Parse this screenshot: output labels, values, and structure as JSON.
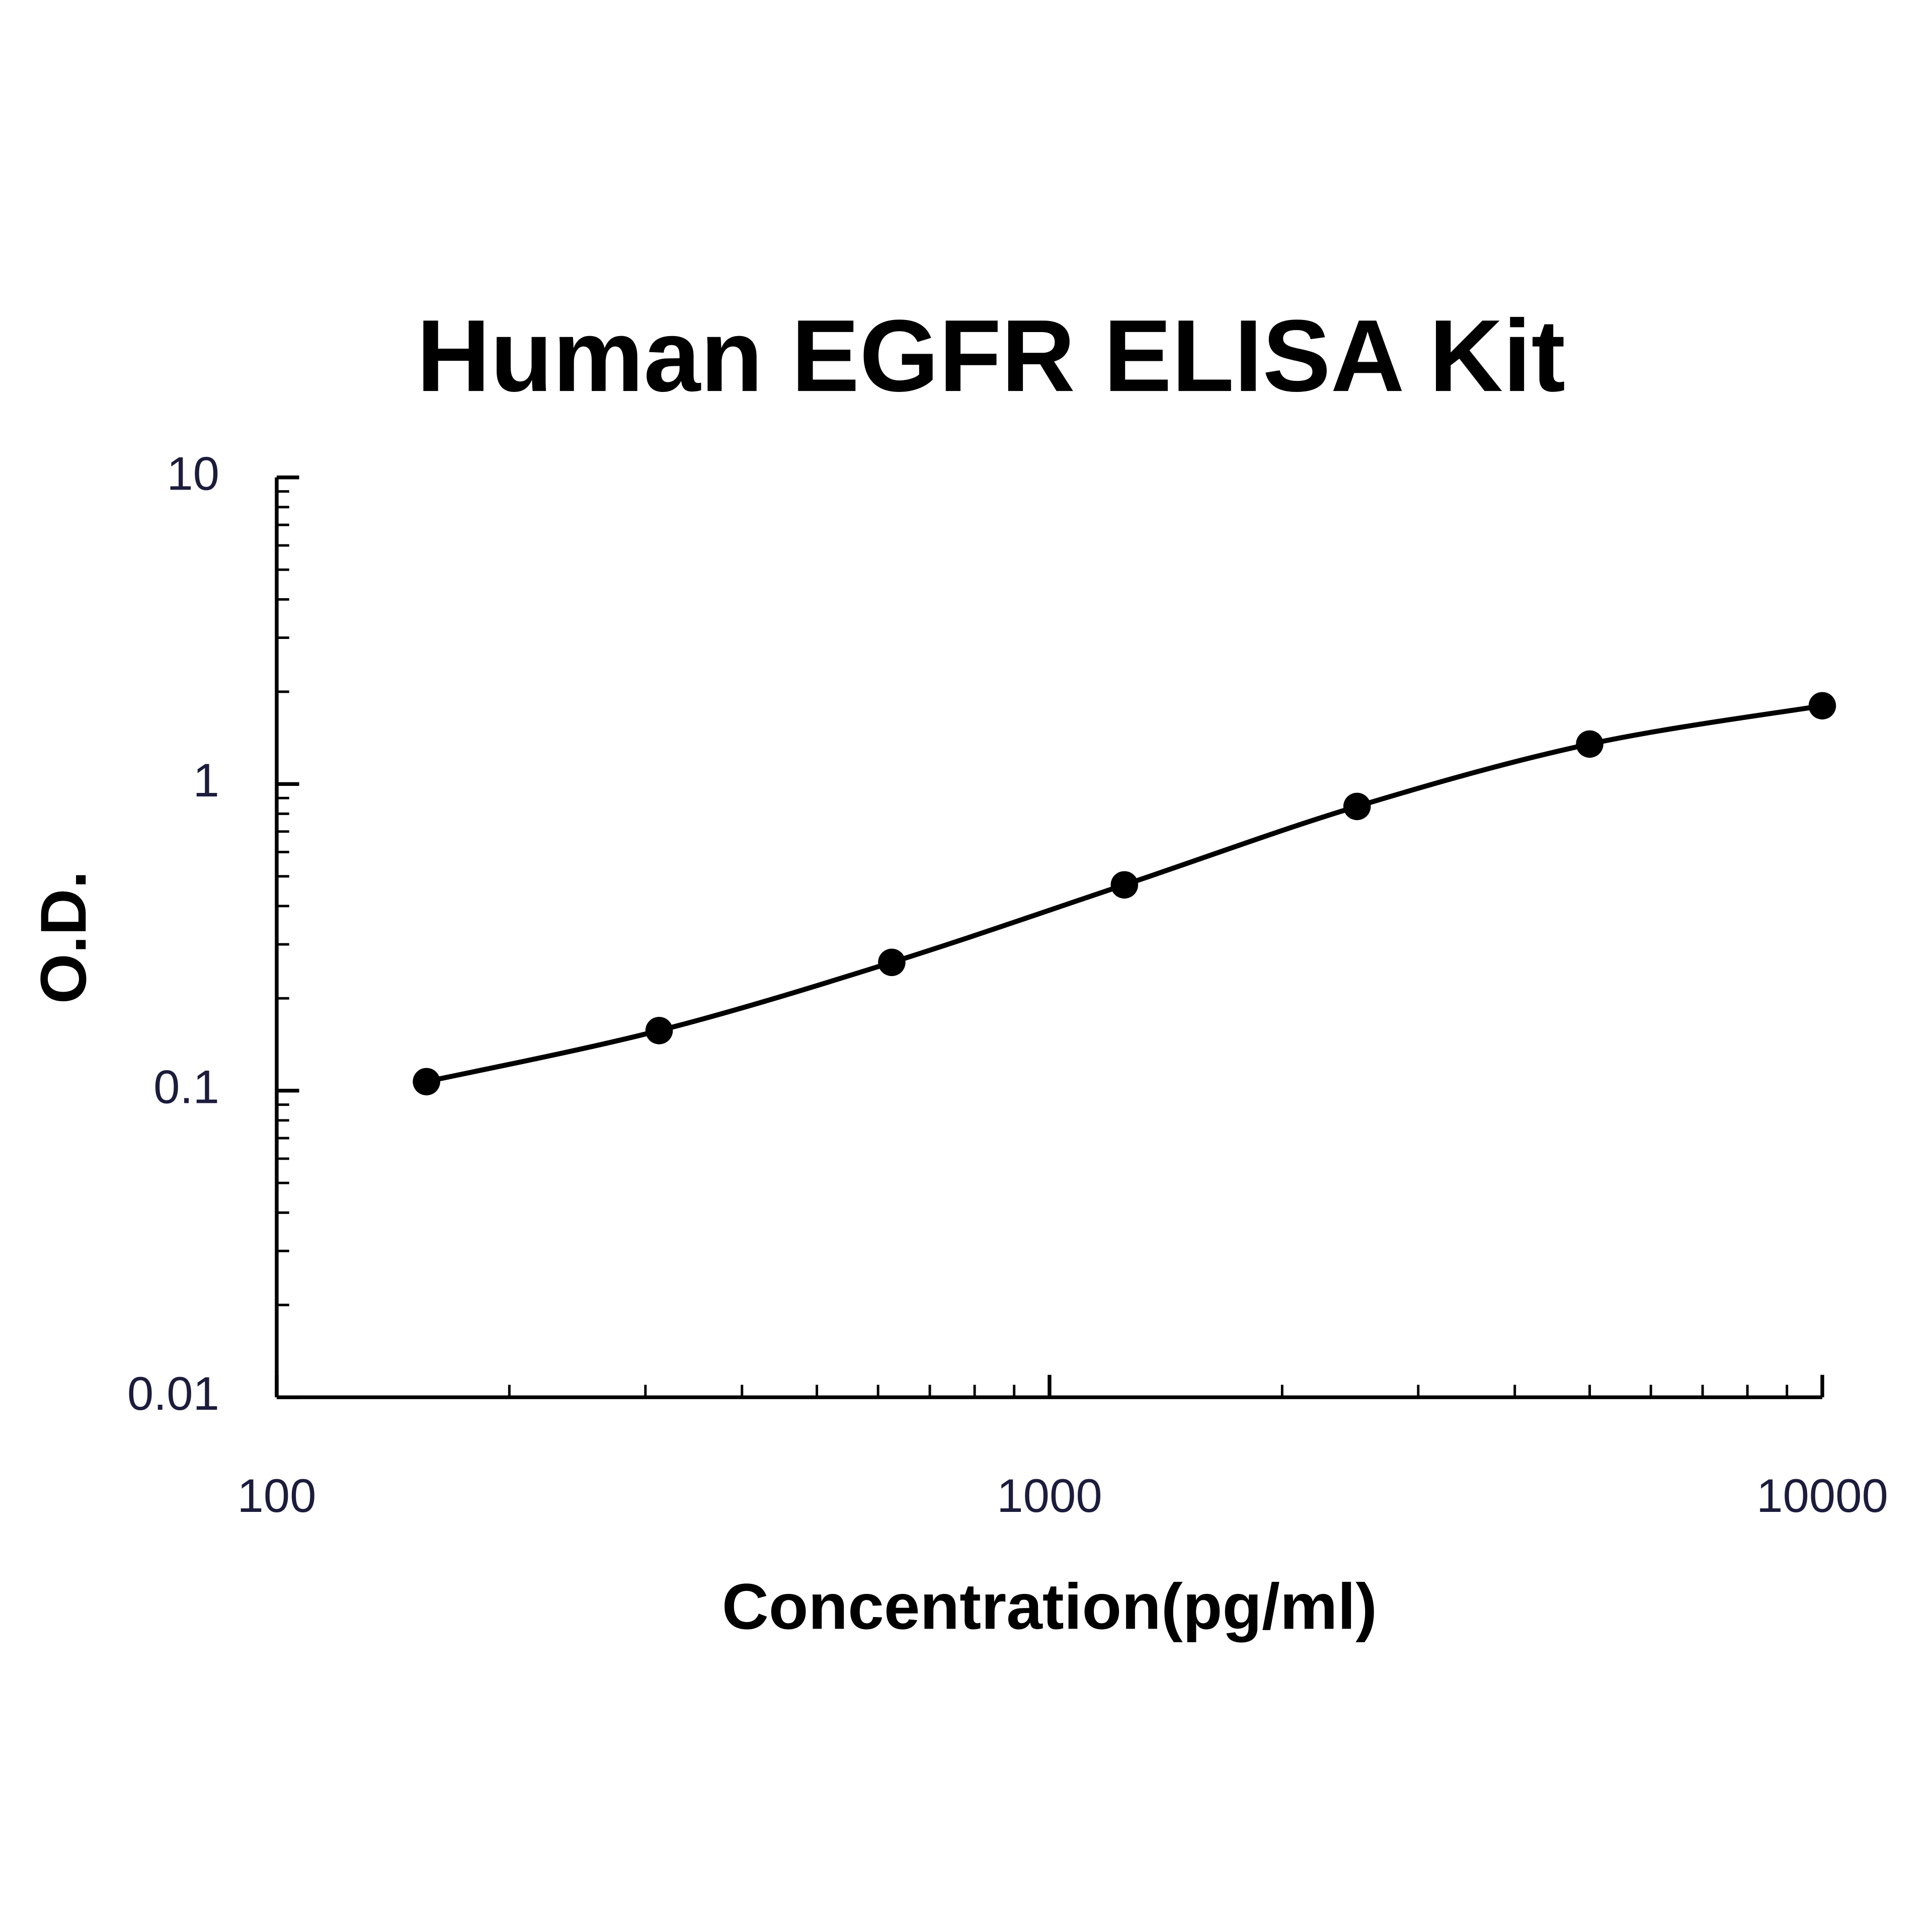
{
  "chart_data": {
    "type": "line",
    "title": "Human EGFR ELISA Kit",
    "x_label": "Concentration(pg/ml)",
    "y_label": "O.D.",
    "x": [
      156.25,
      312.5,
      625,
      1250,
      2500,
      5000,
      10000
    ],
    "series": [
      {
        "name": "EGFR",
        "color": "#000000",
        "values": [
          0.107,
          0.157,
          0.262,
          0.469,
          0.845,
          1.35,
          1.8
        ]
      }
    ],
    "xlim": [
      100,
      10000
    ],
    "xticks": [
      100,
      1000,
      10000
    ],
    "ylim": [
      0.01,
      10
    ],
    "yticks": [
      0.01,
      0.1,
      1,
      10
    ],
    "x_log": true,
    "y_log": true,
    "grid": false,
    "minor_ticks": true
  }
}
